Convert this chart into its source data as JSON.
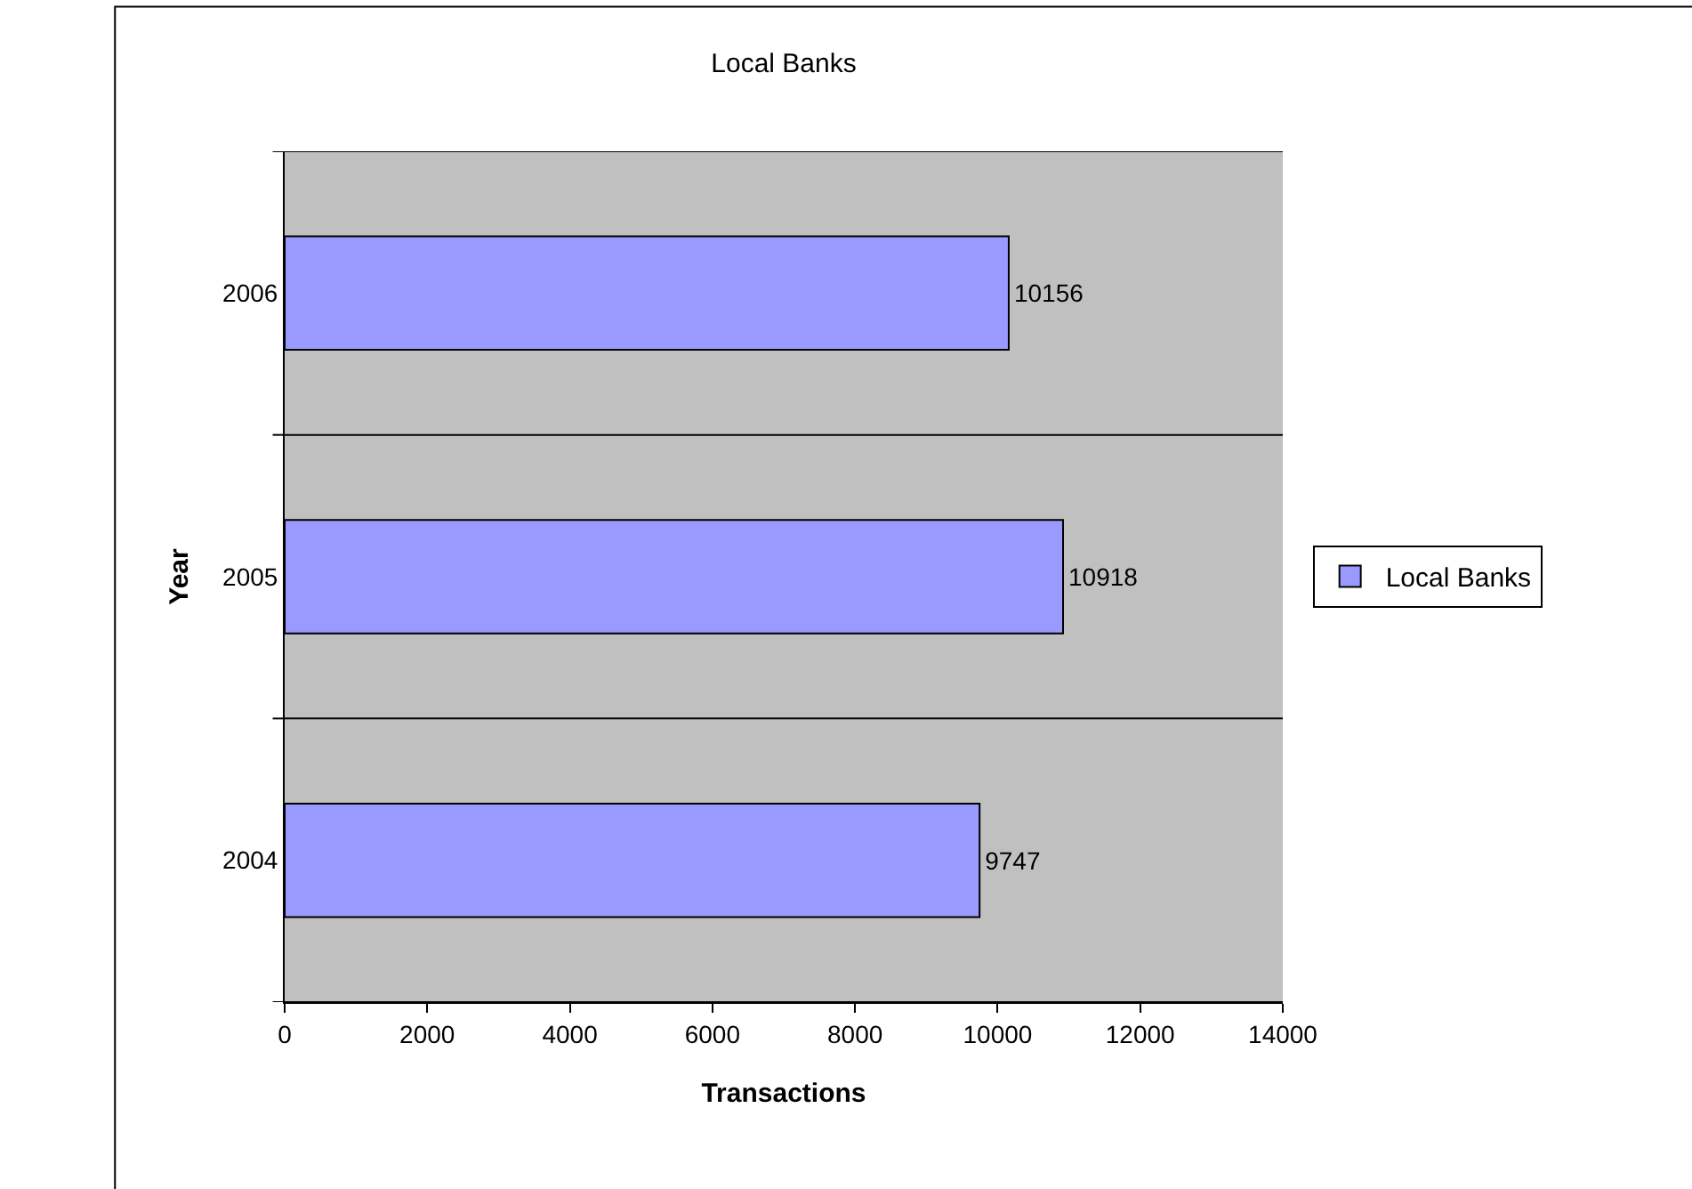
{
  "chart_data": {
    "type": "bar",
    "orientation": "horizontal",
    "title": "Local Banks",
    "xlabel": "Transactions",
    "ylabel": "Year",
    "categories": [
      "2006",
      "2005",
      "2004"
    ],
    "series": [
      {
        "name": "Local Banks",
        "color": "#9999ff",
        "values": [
          10156,
          10918,
          9747
        ]
      }
    ],
    "xlim": [
      0,
      14000
    ],
    "xticks": [
      0,
      2000,
      4000,
      6000,
      8000,
      10000,
      12000,
      14000
    ],
    "data_labels": true,
    "grid": "y",
    "legend": "right"
  }
}
